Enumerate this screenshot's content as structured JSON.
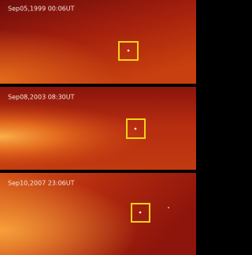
{
  "panels": [
    {
      "label": "Sep05,1999 00:06UT"
    },
    {
      "label": "Sep08,2003 08:30UT"
    },
    {
      "label": "Sep10,2007 23:06UT"
    }
  ]
}
